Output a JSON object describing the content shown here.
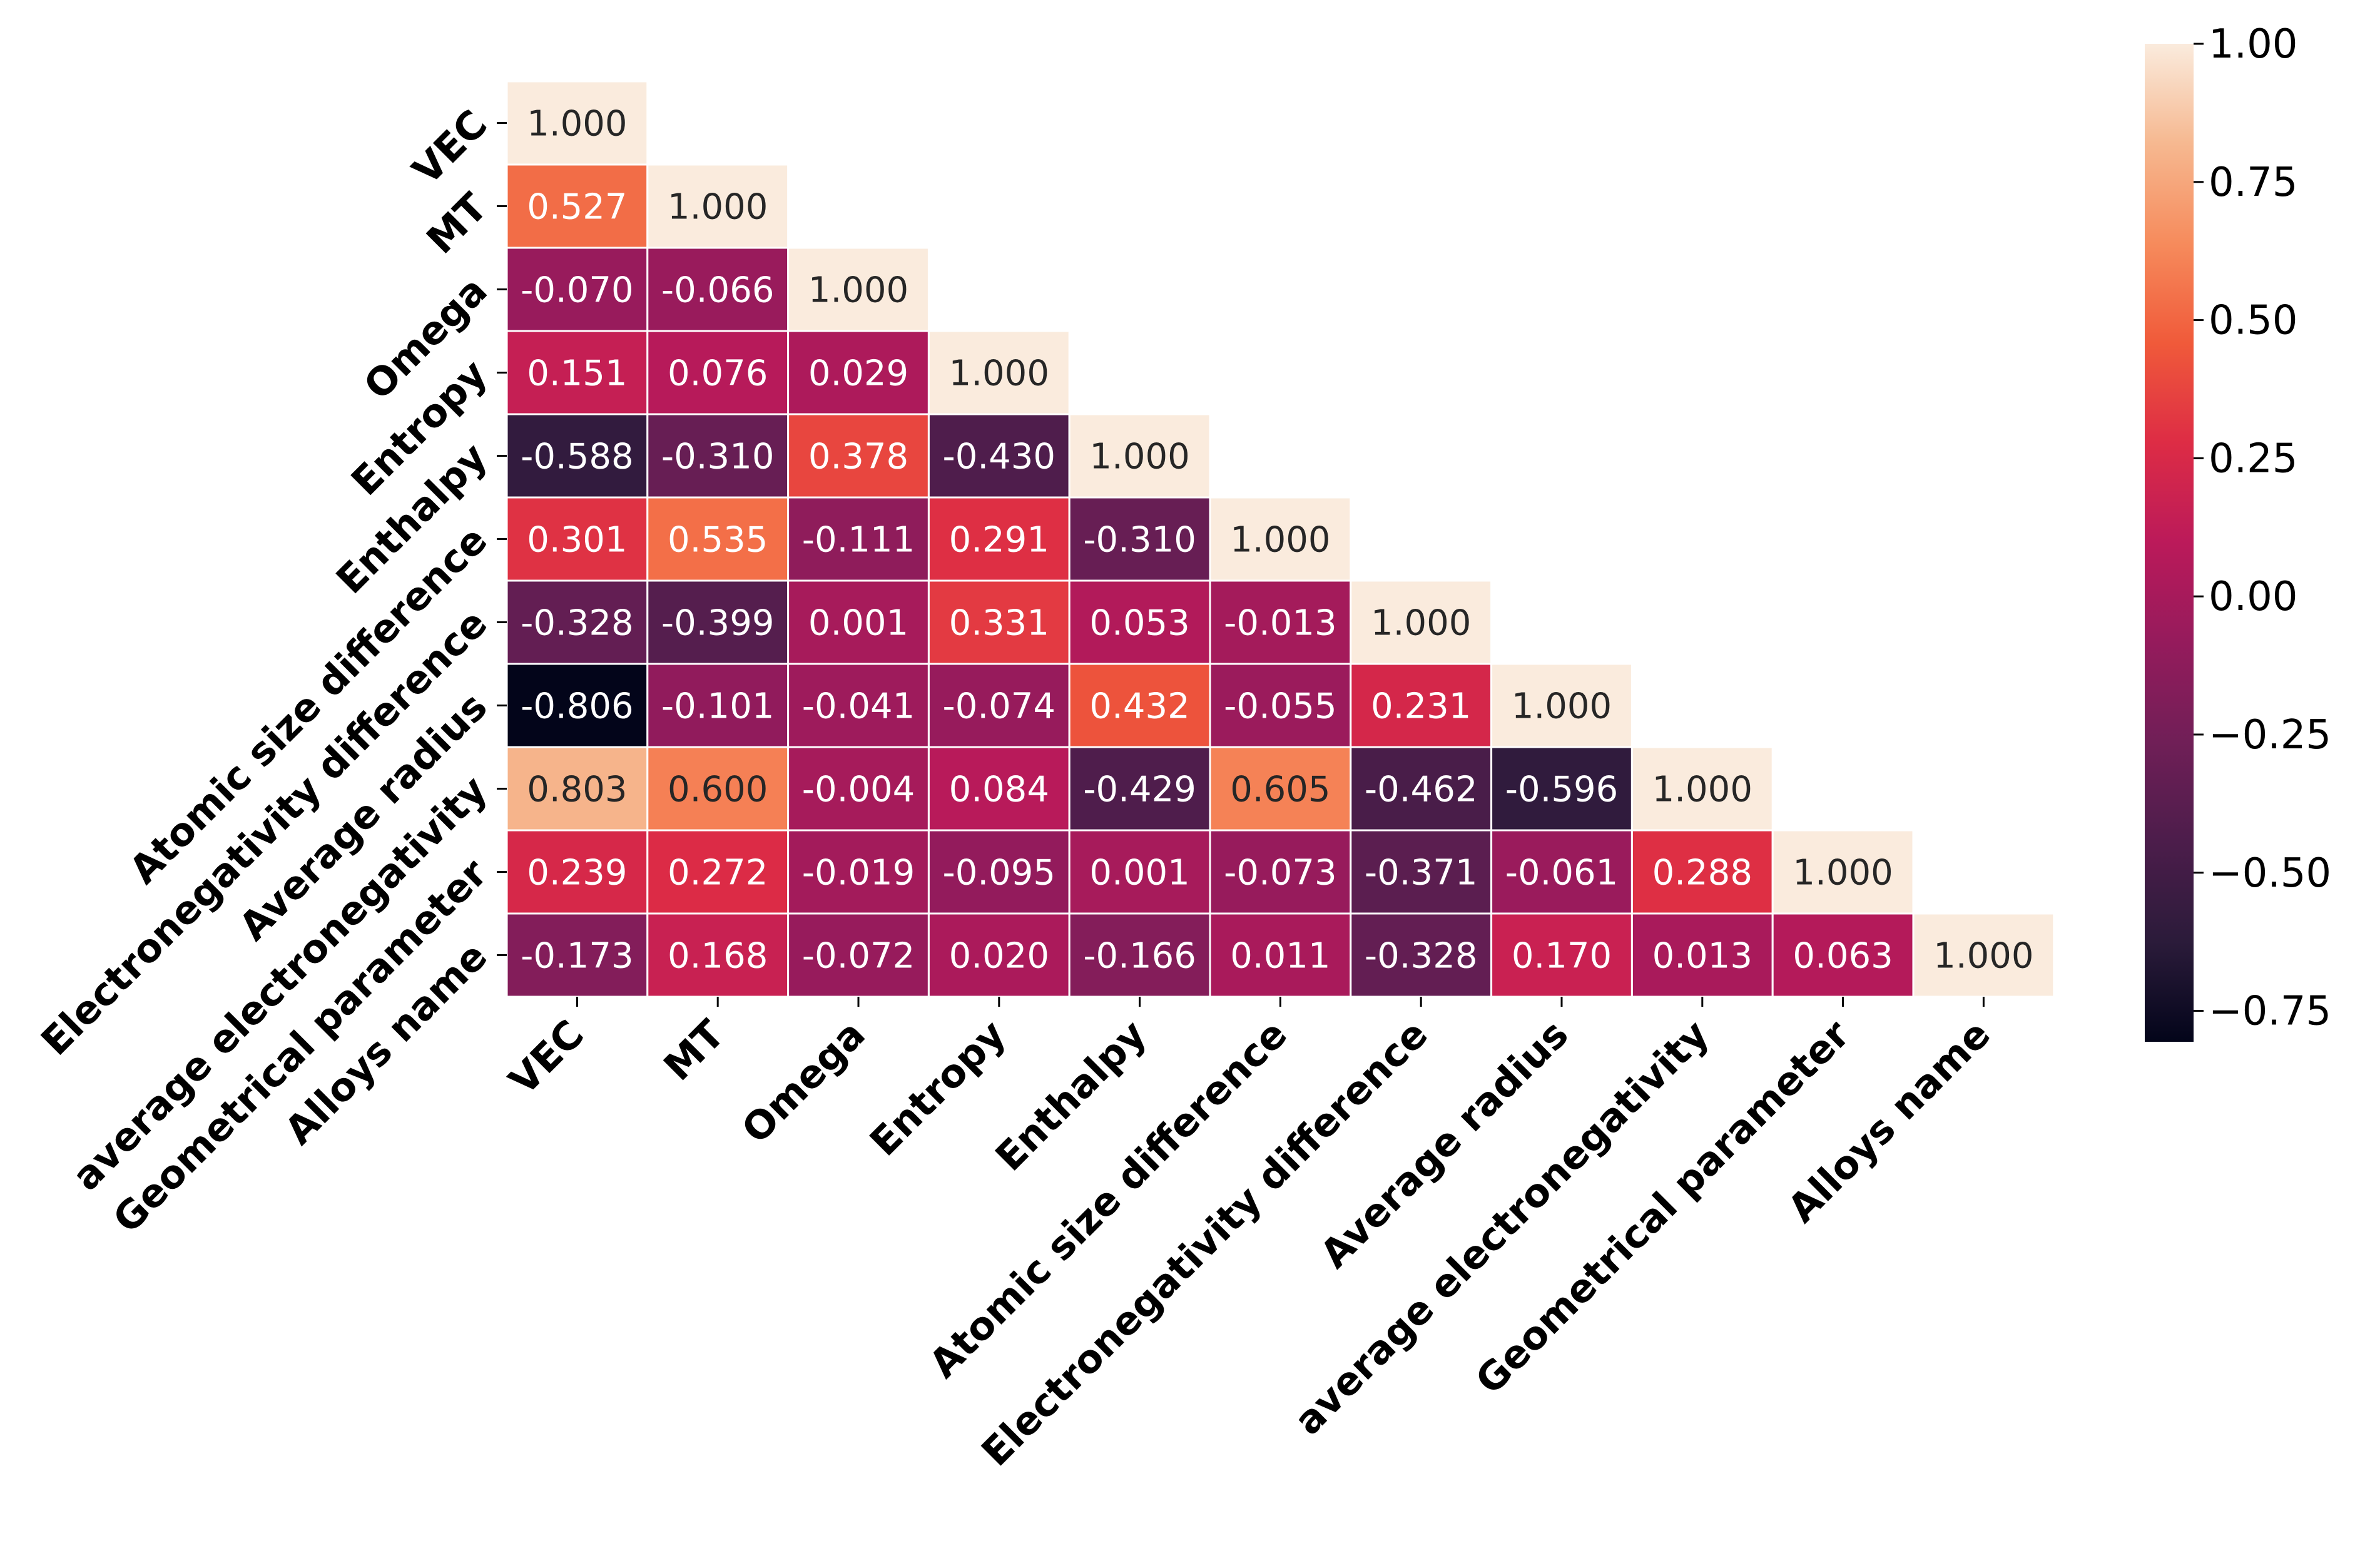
{
  "chart_data": {
    "type": "heatmap",
    "title": "",
    "xlabel": "",
    "ylabel": "",
    "variables": [
      "VEC",
      "MT",
      "Omega",
      "Entropy",
      "Enthalpy",
      "Atomic size difference",
      "Electronegativity difference",
      "Average radius",
      "average electronegativity",
      "Geometrical parameter",
      "Alloys name"
    ],
    "lower_triangle": [
      [
        1.0
      ],
      [
        0.527,
        1.0
      ],
      [
        -0.07,
        -0.066,
        1.0
      ],
      [
        0.151,
        0.076,
        0.029,
        1.0
      ],
      [
        -0.588,
        -0.31,
        0.378,
        -0.43,
        1.0
      ],
      [
        0.301,
        0.535,
        -0.111,
        0.291,
        -0.31,
        1.0
      ],
      [
        -0.328,
        -0.399,
        0.001,
        0.331,
        0.053,
        -0.013,
        1.0
      ],
      [
        -0.806,
        -0.101,
        -0.041,
        -0.074,
        0.432,
        -0.055,
        0.231,
        1.0
      ],
      [
        0.803,
        0.6,
        -0.004,
        0.084,
        -0.429,
        0.605,
        -0.462,
        -0.596,
        1.0
      ],
      [
        0.239,
        0.272,
        -0.019,
        -0.095,
        0.001,
        -0.073,
        -0.371,
        -0.061,
        0.288,
        1.0
      ],
      [
        -0.173,
        0.168,
        -0.072,
        0.02,
        -0.166,
        0.011,
        -0.328,
        0.17,
        0.013,
        0.063,
        1.0
      ]
    ],
    "value_format": "3 decimals",
    "colormap": "rocket",
    "colorbar": {
      "vmin": -0.806,
      "vmax": 1.0,
      "ticks": [
        1.0,
        0.75,
        0.5,
        0.25,
        0.0,
        -0.25,
        -0.5,
        -0.75
      ],
      "tick_labels": [
        "1.00",
        "0.75",
        "0.50",
        "0.25",
        "0.00",
        "−0.25",
        "−0.50",
        "−0.75"
      ]
    },
    "colormap_stops": [
      [
        "#03051a",
        0.0
      ],
      [
        "#2b1b3a",
        0.1
      ],
      [
        "#4c1d4b",
        0.2
      ],
      [
        "#701f57",
        0.3
      ],
      [
        "#951b5c",
        0.4
      ],
      [
        "#bb1a5a",
        0.5
      ],
      [
        "#dd2c45",
        0.6
      ],
      [
        "#f05a3a",
        0.7
      ],
      [
        "#f68b5c",
        0.8
      ],
      [
        "#f6b890",
        0.9
      ],
      [
        "#faebdd",
        1.0
      ]
    ]
  }
}
